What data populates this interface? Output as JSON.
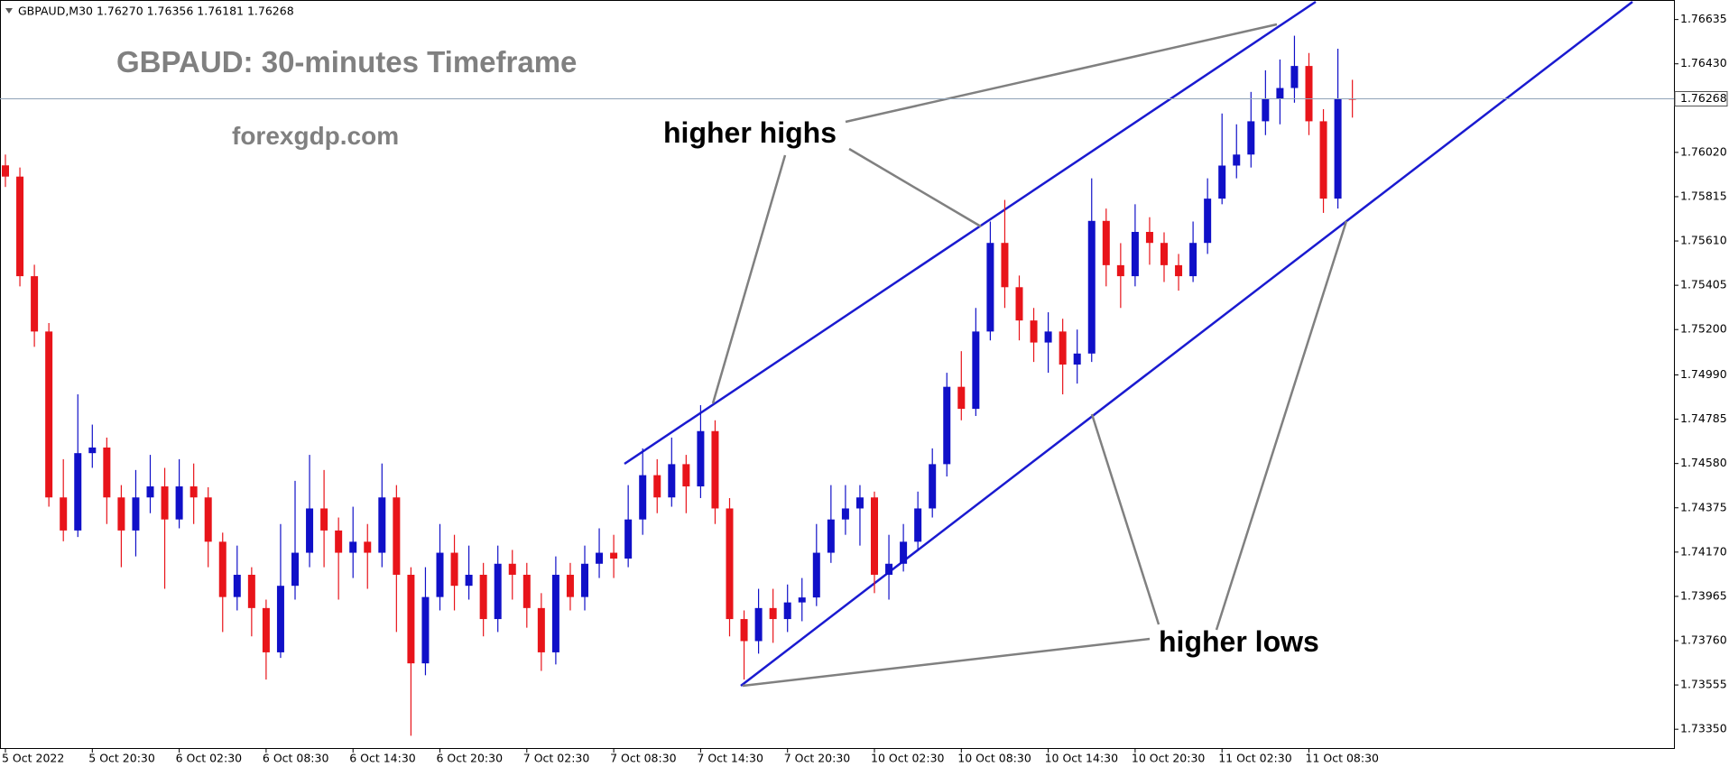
{
  "chart_data": {
    "type": "candlestick",
    "header": "GBPAUD,M30  1.76270 1.76356 1.76181 1.76268",
    "title": "GBPAUD: 30-minutes Timeframe",
    "subtitle": "forexgdp.com",
    "annotations": [
      "higher highs",
      "higher lows"
    ],
    "up_color": "#1010c8",
    "down_color": "#e8141a",
    "current_price": 1.76268,
    "ylim": [
      1.73263,
      1.76717
    ],
    "yticks": [
      1.76635,
      {
        "value": 1.7643,
        "label": "1.76430"
      },
      {
        "value": 1.7602,
        "label": "1.76020"
      },
      1.75815,
      {
        "value": 1.7561,
        "label": "1.75610"
      },
      1.75405,
      {
        "value": 1.752,
        "label": "1.75200"
      },
      {
        "value": 1.7499,
        "label": "1.74990"
      },
      1.74785,
      {
        "value": 1.7458,
        "label": "1.74580"
      },
      1.74375,
      {
        "value": 1.7417,
        "label": "1.74170"
      },
      1.73965,
      {
        "value": 1.7376,
        "label": "1.73760"
      },
      1.73555,
      {
        "value": 1.7335,
        "label": "1.73350"
      }
    ],
    "categories": [
      "5 Oct 2022",
      null,
      null,
      null,
      null,
      null,
      "5 Oct 20:30",
      null,
      null,
      null,
      null,
      null,
      "6 Oct 02:30",
      null,
      null,
      null,
      null,
      null,
      "6 Oct 08:30",
      null,
      null,
      null,
      null,
      null,
      "6 Oct 14:30",
      null,
      null,
      null,
      null,
      null,
      "6 Oct 20:30",
      null,
      null,
      null,
      null,
      null,
      "7 Oct 02:30",
      null,
      null,
      null,
      null,
      null,
      "7 Oct 08:30",
      null,
      null,
      null,
      null,
      null,
      "7 Oct 14:30",
      null,
      null,
      null,
      null,
      null,
      "7 Oct 20:30",
      null,
      null,
      null,
      null,
      null,
      "10 Oct 02:30",
      null,
      null,
      null,
      null,
      null,
      "10 Oct 08:30",
      null,
      null,
      null,
      null,
      null,
      "10 Oct 14:30",
      null,
      null,
      null,
      null,
      null,
      "10 Oct 20:30",
      null,
      null,
      null,
      null,
      null,
      "11 Oct 02:30",
      null,
      null,
      null,
      null,
      null,
      "11 Oct 08:30",
      null,
      null,
      null
    ],
    "ohlc": [
      [
        1.7596,
        1.7601,
        1.7586,
        1.75908
      ],
      [
        1.75908,
        1.7595,
        1.754,
        1.75447
      ],
      [
        1.75447,
        1.755,
        1.7512,
        1.75191
      ],
      [
        1.75191,
        1.7523,
        1.7438,
        1.74423
      ],
      [
        1.74423,
        1.746,
        1.7422,
        1.7427
      ],
      [
        1.7427,
        1.749,
        1.7424,
        1.74628
      ],
      [
        1.74628,
        1.7476,
        1.7456,
        1.74654
      ],
      [
        1.74654,
        1.747,
        1.743,
        1.74423
      ],
      [
        1.74423,
        1.7448,
        1.741,
        1.7427
      ],
      [
        1.7427,
        1.7455,
        1.7415,
        1.74423
      ],
      [
        1.74423,
        1.7462,
        1.7435,
        1.74474
      ],
      [
        1.74474,
        1.7456,
        1.74,
        1.74321
      ],
      [
        1.74321,
        1.746,
        1.7428,
        1.74474
      ],
      [
        1.74474,
        1.7458,
        1.743,
        1.74423
      ],
      [
        1.74423,
        1.7447,
        1.741,
        1.74218
      ],
      [
        1.74218,
        1.7426,
        1.738,
        1.73962
      ],
      [
        1.73962,
        1.742,
        1.739,
        1.74065
      ],
      [
        1.74065,
        1.741,
        1.7378,
        1.73911
      ],
      [
        1.73911,
        1.7395,
        1.7358,
        1.73706
      ],
      [
        1.73706,
        1.743,
        1.7368,
        1.74014
      ],
      [
        1.74014,
        1.745,
        1.7395,
        1.74167
      ],
      [
        1.74167,
        1.7462,
        1.741,
        1.74372
      ],
      [
        1.74372,
        1.7455,
        1.741,
        1.7427
      ],
      [
        1.7427,
        1.7433,
        1.7395,
        1.74167
      ],
      [
        1.74167,
        1.7438,
        1.7405,
        1.74218
      ],
      [
        1.74218,
        1.743,
        1.74,
        1.74167
      ],
      [
        1.74167,
        1.7458,
        1.741,
        1.74423
      ],
      [
        1.74423,
        1.7448,
        1.738,
        1.74065
      ],
      [
        1.74065,
        1.741,
        1.7332,
        1.73655
      ],
      [
        1.73655,
        1.741,
        1.736,
        1.73962
      ],
      [
        1.73962,
        1.743,
        1.739,
        1.74167
      ],
      [
        1.74167,
        1.7425,
        1.739,
        1.74014
      ],
      [
        1.74014,
        1.742,
        1.7395,
        1.74065
      ],
      [
        1.74065,
        1.7412,
        1.7378,
        1.7386
      ],
      [
        1.7386,
        1.742,
        1.738,
        1.74116
      ],
      [
        1.74116,
        1.7418,
        1.7395,
        1.74065
      ],
      [
        1.74065,
        1.7412,
        1.7382,
        1.73911
      ],
      [
        1.73911,
        1.7398,
        1.7362,
        1.73706
      ],
      [
        1.73706,
        1.7415,
        1.7365,
        1.74065
      ],
      [
        1.74065,
        1.7412,
        1.739,
        1.73962
      ],
      [
        1.73962,
        1.742,
        1.739,
        1.74116
      ],
      [
        1.74116,
        1.7428,
        1.7405,
        1.74167
      ],
      [
        1.74167,
        1.7425,
        1.7405,
        1.7414
      ],
      [
        1.7414,
        1.7448,
        1.741,
        1.74321
      ],
      [
        1.74321,
        1.7465,
        1.7425,
        1.74526
      ],
      [
        1.74526,
        1.746,
        1.7435,
        1.74423
      ],
      [
        1.74423,
        1.747,
        1.7438,
        1.74577
      ],
      [
        1.74577,
        1.7462,
        1.7435,
        1.74474
      ],
      [
        1.74474,
        1.7485,
        1.7442,
        1.7473
      ],
      [
        1.7473,
        1.7478,
        1.743,
        1.74372
      ],
      [
        1.74372,
        1.7442,
        1.7378,
        1.7386
      ],
      [
        1.7386,
        1.739,
        1.7358,
        1.73758
      ],
      [
        1.73758,
        1.74,
        1.737,
        1.73911
      ],
      [
        1.73911,
        1.74,
        1.7375,
        1.7386
      ],
      [
        1.7386,
        1.7402,
        1.738,
        1.73937
      ],
      [
        1.73937,
        1.7405,
        1.7385,
        1.7396
      ],
      [
        1.7396,
        1.743,
        1.7392,
        1.74167
      ],
      [
        1.74167,
        1.7448,
        1.7412,
        1.74321
      ],
      [
        1.74321,
        1.7448,
        1.7425,
        1.74372
      ],
      [
        1.74372,
        1.7448,
        1.742,
        1.74423
      ],
      [
        1.74423,
        1.7445,
        1.7398,
        1.74065
      ],
      [
        1.74065,
        1.7425,
        1.7395,
        1.74116
      ],
      [
        1.74116,
        1.743,
        1.7408,
        1.74218
      ],
      [
        1.74218,
        1.7445,
        1.7418,
        1.74372
      ],
      [
        1.74372,
        1.7465,
        1.7433,
        1.74577
      ],
      [
        1.74577,
        1.75,
        1.7452,
        1.74935
      ],
      [
        1.74935,
        1.751,
        1.7478,
        1.74833
      ],
      [
        1.74833,
        1.753,
        1.748,
        1.75191
      ],
      [
        1.75191,
        1.757,
        1.7515,
        1.75601
      ],
      [
        1.75601,
        1.758,
        1.753,
        1.75396
      ],
      [
        1.75396,
        1.7545,
        1.7515,
        1.75242
      ],
      [
        1.75242,
        1.753,
        1.7505,
        1.7514
      ],
      [
        1.7514,
        1.7528,
        1.75,
        1.75191
      ],
      [
        1.75191,
        1.7525,
        1.749,
        1.75038
      ],
      [
        1.75038,
        1.752,
        1.7495,
        1.75089
      ],
      [
        1.75089,
        1.759,
        1.7505,
        1.75703
      ],
      [
        1.75703,
        1.7576,
        1.754,
        1.75498
      ],
      [
        1.75498,
        1.756,
        1.753,
        1.75447
      ],
      [
        1.75447,
        1.7578,
        1.754,
        1.75652
      ],
      [
        1.75652,
        1.7572,
        1.755,
        1.75601
      ],
      [
        1.75601,
        1.7565,
        1.7542,
        1.75498
      ],
      [
        1.75498,
        1.7555,
        1.7538,
        1.75447
      ],
      [
        1.75447,
        1.757,
        1.7542,
        1.75601
      ],
      [
        1.75601,
        1.759,
        1.7555,
        1.75806
      ],
      [
        1.75806,
        1.762,
        1.7578,
        1.75959
      ],
      [
        1.75959,
        1.7615,
        1.759,
        1.7601
      ],
      [
        1.7601,
        1.763,
        1.7595,
        1.76164
      ],
      [
        1.76164,
        1.764,
        1.761,
        1.76266
      ],
      [
        1.76266,
        1.7645,
        1.7615,
        1.76318
      ],
      [
        1.76318,
        1.7656,
        1.7625,
        1.7642
      ],
      [
        1.7642,
        1.7648,
        1.761,
        1.76164
      ],
      [
        1.76164,
        1.7622,
        1.7574,
        1.75806
      ],
      [
        1.75806,
        1.765,
        1.7576,
        1.7627
      ],
      [
        1.7627,
        1.76356,
        1.76181,
        1.76268
      ]
    ]
  }
}
